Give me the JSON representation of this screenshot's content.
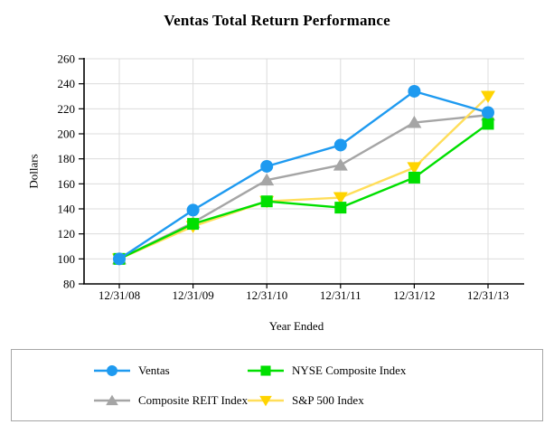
{
  "chart_data": {
    "type": "line",
    "title": "Ventas Total Return Performance",
    "xlabel": "Year Ended",
    "ylabel": "Dollars",
    "categories": [
      "12/31/08",
      "12/31/09",
      "12/31/10",
      "12/31/11",
      "12/31/12",
      "12/31/13"
    ],
    "ylim": [
      80,
      260
    ],
    "yticks": [
      80,
      100,
      120,
      140,
      160,
      180,
      200,
      220,
      240,
      260
    ],
    "grid": true,
    "grid_color": "#dcdcdc",
    "axis_color": "#000000",
    "legend_position": "bottom",
    "series": [
      {
        "name": "Ventas",
        "marker": "circle",
        "color": "#1e9af0",
        "values": [
          100,
          139,
          174,
          191,
          234,
          217
        ]
      },
      {
        "name": "NYSE Composite Index",
        "marker": "square",
        "color": "#00df00",
        "values": [
          100,
          128,
          146,
          141,
          165,
          208
        ]
      },
      {
        "name": "Composite REIT Index",
        "marker": "triangle-up",
        "color": "#a5a5a5",
        "values": [
          100,
          129,
          163,
          175,
          209,
          215
        ]
      },
      {
        "name": "S&P 500 Index",
        "marker": "triangle-down",
        "color": "#ffd400",
        "line_color": "#ffde5a",
        "values": [
          100,
          126,
          146,
          149,
          173,
          230
        ]
      }
    ],
    "draw_order": [
      2,
      3,
      1,
      0
    ]
  }
}
